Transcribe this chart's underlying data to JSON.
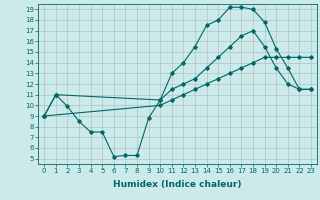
{
  "xlabel": "Humidex (Indice chaleur)",
  "bg_color": "#cceaea",
  "line_color": "#006666",
  "grid_color": "#aabbbb",
  "xlim": [
    -0.5,
    23.5
  ],
  "ylim": [
    4.5,
    19.5
  ],
  "xticks": [
    0,
    1,
    2,
    3,
    4,
    5,
    6,
    7,
    8,
    9,
    10,
    11,
    12,
    13,
    14,
    15,
    16,
    17,
    18,
    19,
    20,
    21,
    22,
    23
  ],
  "yticks": [
    5,
    6,
    7,
    8,
    9,
    10,
    11,
    12,
    13,
    14,
    15,
    16,
    17,
    18,
    19
  ],
  "line1_x": [
    0,
    1,
    2,
    3,
    4,
    5,
    6,
    7,
    8,
    9,
    10,
    11,
    12,
    13,
    14,
    15,
    16,
    17,
    18,
    19,
    20,
    21,
    22,
    23
  ],
  "line1_y": [
    9,
    11,
    9.9,
    8.5,
    7.5,
    7.5,
    5.2,
    5.3,
    5.3,
    8.8,
    10.5,
    13.0,
    14.0,
    15.5,
    17.5,
    18.0,
    19.2,
    19.2,
    19.0,
    17.8,
    15.3,
    13.5,
    11.5,
    11.5
  ],
  "line2_x": [
    0,
    1,
    10,
    11,
    12,
    13,
    14,
    15,
    16,
    17,
    18,
    19,
    20,
    21,
    22,
    23
  ],
  "line2_y": [
    9,
    11,
    10.5,
    11.5,
    12.0,
    12.5,
    13.5,
    14.5,
    15.5,
    16.5,
    17.0,
    15.5,
    13.5,
    12.0,
    11.5,
    11.5
  ],
  "line3_x": [
    0,
    10,
    11,
    12,
    13,
    14,
    15,
    16,
    17,
    18,
    19,
    20,
    21,
    22,
    23
  ],
  "line3_y": [
    9,
    10.0,
    10.5,
    11.0,
    11.5,
    12.0,
    12.5,
    13.0,
    13.5,
    14.0,
    14.5,
    14.5,
    14.5,
    14.5,
    14.5
  ],
  "xlabel_fontsize": 6.5,
  "tick_fontsize": 5
}
